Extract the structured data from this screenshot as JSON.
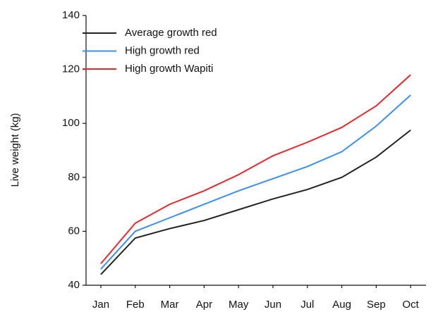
{
  "chart_data": {
    "type": "line",
    "y_label": "Live weight (kg)",
    "categories": [
      "Jan",
      "Feb",
      "Mar",
      "Apr",
      "May",
      "Jun",
      "Jul",
      "Aug",
      "Sep",
      "Oct"
    ],
    "series": [
      {
        "name": "Average growth red",
        "color": "#222222",
        "values": [
          44,
          57.5,
          61,
          64,
          68,
          72,
          75.5,
          80,
          87.5,
          97.5
        ]
      },
      {
        "name": "High growth red",
        "color": "#3d8ef0",
        "values": [
          46,
          60,
          65,
          70,
          75,
          79.5,
          84,
          89.5,
          99,
          110.5
        ]
      },
      {
        "name": "High growth Wapiti",
        "color": "#e8262c",
        "values": [
          48,
          63,
          70,
          75,
          81,
          88,
          93,
          98.5,
          106.5,
          118
        ]
      }
    ],
    "ylim": [
      40,
      140
    ],
    "yticks": [
      40,
      60,
      80,
      100,
      120,
      140
    ],
    "legend": "upper-left",
    "grid": false
  }
}
